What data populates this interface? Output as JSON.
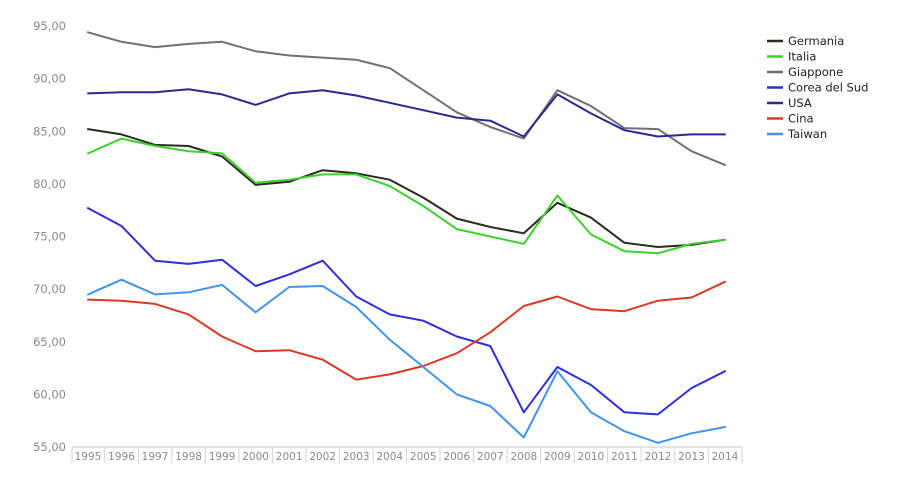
{
  "chart_data": {
    "type": "line",
    "title": "",
    "xlabel": "",
    "ylabel": "",
    "categories": [
      "1995",
      "1996",
      "1997",
      "1998",
      "1999",
      "2000",
      "2001",
      "2002",
      "2003",
      "2004",
      "2005",
      "2006",
      "2007",
      "2008",
      "2009",
      "2010",
      "2011",
      "2012",
      "2013",
      "2014"
    ],
    "ylim": [
      55,
      95
    ],
    "y_ticks": [
      "55,00",
      "60,00",
      "65,00",
      "70,00",
      "75,00",
      "80,00",
      "85,00",
      "90,00",
      "95,00"
    ],
    "y_tick_values": [
      55,
      60,
      65,
      70,
      75,
      80,
      85,
      90,
      95
    ],
    "grid": false,
    "legend_position": "right",
    "series": [
      {
        "name": "Germania",
        "color": "#2b2b22",
        "values": [
          85.2,
          84.7,
          83.7,
          83.6,
          82.6,
          79.9,
          80.2,
          81.3,
          81.0,
          80.4,
          78.7,
          76.7,
          75.9,
          75.3,
          78.2,
          76.8,
          74.4,
          74.0,
          74.2,
          74.7
        ]
      },
      {
        "name": "Italia",
        "color": "#3fcf2f",
        "values": [
          82.9,
          84.3,
          83.6,
          83.1,
          82.9,
          80.1,
          80.4,
          80.9,
          80.9,
          79.8,
          77.9,
          75.7,
          75.0,
          74.3,
          78.9,
          75.2,
          73.6,
          73.4,
          74.3,
          74.7
        ]
      },
      {
        "name": "Giappone",
        "color": "#6f6f78",
        "values": [
          94.4,
          93.5,
          93.0,
          93.3,
          93.5,
          92.6,
          92.2,
          92.0,
          91.8,
          91.0,
          88.9,
          86.8,
          85.4,
          84.3,
          88.9,
          87.4,
          85.3,
          85.2,
          83.1,
          81.8
        ]
      },
      {
        "name": "Corea del Sud",
        "color": "#2f2fd9",
        "values": [
          77.7,
          76.0,
          72.7,
          72.4,
          72.8,
          70.3,
          71.4,
          72.7,
          69.3,
          67.6,
          67.0,
          65.5,
          64.6,
          58.3,
          62.6,
          60.9,
          58.3,
          58.1,
          60.6,
          62.2
        ]
      },
      {
        "name": "USA",
        "color": "#2a2a8e",
        "values": [
          88.6,
          88.7,
          88.7,
          89.0,
          88.5,
          87.5,
          88.6,
          88.9,
          88.4,
          87.7,
          87.0,
          86.3,
          86.0,
          84.5,
          88.5,
          86.7,
          85.1,
          84.5,
          84.7,
          84.7
        ]
      },
      {
        "name": "Cina",
        "color": "#d93a24",
        "values": [
          69.0,
          68.9,
          68.6,
          67.6,
          65.5,
          64.1,
          64.2,
          63.3,
          61.4,
          61.9,
          62.7,
          63.9,
          65.9,
          68.4,
          69.3,
          68.1,
          67.9,
          68.9,
          69.2,
          70.7
        ]
      },
      {
        "name": "Taiwan",
        "color": "#4493ec",
        "values": [
          69.5,
          70.9,
          69.5,
          69.7,
          70.4,
          67.8,
          70.2,
          70.3,
          68.3,
          65.2,
          62.6,
          60.0,
          58.9,
          55.9,
          62.2,
          58.3,
          56.5,
          55.4,
          56.3,
          56.9
        ]
      }
    ]
  }
}
